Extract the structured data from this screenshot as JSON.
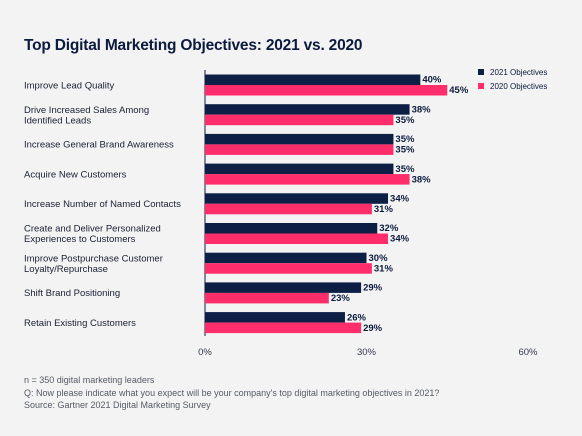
{
  "chart_data": {
    "type": "bar",
    "orientation": "horizontal",
    "title": "Top Digital Marketing Objectives: 2021 vs. 2020",
    "categories": [
      [
        "Improve Lead Quality"
      ],
      [
        "Drive Increased Sales Among",
        "Identified Leads"
      ],
      [
        "Increase General Brand Awareness"
      ],
      [
        "Acquire New Customers"
      ],
      [
        "Increase Number of Named Contacts"
      ],
      [
        "Create and Deliver Personalized",
        "Experiences to Customers"
      ],
      [
        "Improve Postpurchase Customer",
        "Loyalty/Repurchase"
      ],
      [
        "Shift Brand Positioning"
      ],
      [
        "Retain Existing Customers"
      ]
    ],
    "series": [
      {
        "name": "2021 Objectives",
        "color": "#0d1f45",
        "values": [
          40,
          38,
          35,
          35,
          34,
          32,
          30,
          29,
          26
        ]
      },
      {
        "name": "2020 Objectives",
        "color": "#ff2d6a",
        "values": [
          45,
          35,
          35,
          38,
          31,
          34,
          31,
          23,
          29
        ]
      }
    ],
    "value_suffix": "%",
    "xlim": [
      0,
      60
    ],
    "xticks": [
      "0%",
      "30%",
      "60%"
    ],
    "legend_position": "top-right",
    "grid": false
  },
  "footnotes": {
    "sample": "n = 350 digital marketing leaders",
    "question": "Q: Now please indicate what you expect will be your company's top digital marketing objectives in 2021?",
    "source": "Source: Gartner 2021 Digital Marketing Survey"
  }
}
